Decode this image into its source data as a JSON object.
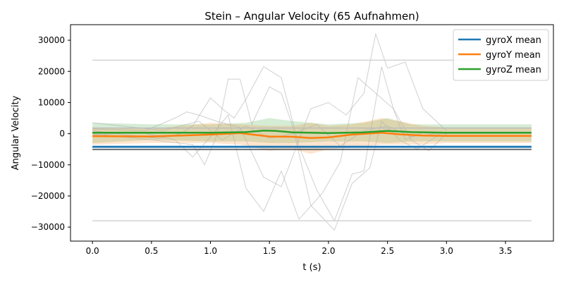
{
  "chart_data": {
    "type": "line",
    "title": "Stein – Angular Velocity (65 Aufnahmen)",
    "xlabel": "t (s)",
    "ylabel": "Angular Velocity",
    "xlim": [
      -0.186,
      3.906
    ],
    "ylim": [
      -34500,
      35000
    ],
    "xticks": [
      0.0,
      0.5,
      1.0,
      1.5,
      2.0,
      2.5,
      3.0,
      3.5
    ],
    "xtick_labels": [
      "0.0",
      "0.5",
      "1.0",
      "1.5",
      "2.0",
      "2.5",
      "3.0",
      "3.5"
    ],
    "yticks": [
      -30000,
      -20000,
      -10000,
      0,
      10000,
      20000,
      30000
    ],
    "ytick_labels": [
      "−30000",
      "−20000",
      "−10000",
      "0",
      "10000",
      "20000",
      "30000"
    ],
    "grid": false,
    "legend_position": "top-right",
    "mean_series": [
      {
        "name": "gyroX mean",
        "color": "#1f77b4",
        "x": [
          0,
          1.0,
          1.5,
          2.0,
          2.5,
          3.0,
          3.72
        ],
        "values": [
          -4200,
          -4200,
          -4200,
          -4200,
          -4200,
          -4200,
          -4200
        ]
      },
      {
        "name": "gyroY mean",
        "color": "#ff7f0e",
        "x": [
          0,
          0.5,
          1.0,
          1.25,
          1.5,
          1.7,
          1.85,
          2.0,
          2.2,
          2.45,
          2.6,
          2.8,
          3.0,
          3.72
        ],
        "values": [
          -800,
          -900,
          -300,
          200,
          -900,
          -1000,
          -1400,
          -1200,
          -300,
          300,
          -200,
          -600,
          -700,
          -700
        ]
      },
      {
        "name": "gyroZ mean",
        "color": "#2ca02c",
        "x": [
          0,
          0.5,
          1.0,
          1.3,
          1.45,
          1.55,
          1.7,
          2.0,
          2.3,
          2.5,
          2.7,
          3.0,
          3.72
        ],
        "values": [
          300,
          300,
          300,
          500,
          1000,
          900,
          400,
          200,
          400,
          900,
          500,
          300,
          300
        ]
      }
    ],
    "bands": [
      {
        "color": "#2ca02c",
        "x": [
          0,
          0.5,
          1.0,
          1.3,
          1.5,
          1.7,
          2.0,
          2.3,
          2.5,
          2.7,
          3.0,
          3.72
        ],
        "upper": [
          3500,
          3000,
          3000,
          3500,
          5000,
          4000,
          3000,
          3500,
          5000,
          3000,
          3000,
          3000
        ],
        "lower": [
          -3000,
          -2000,
          -2500,
          -2500,
          -3000,
          -3000,
          -2500,
          -2500,
          -3000,
          -2500,
          -2500,
          -2500
        ]
      },
      {
        "color": "#ff7f0e",
        "x": [
          0,
          0.5,
          1.0,
          1.25,
          1.5,
          1.7,
          1.85,
          2.0,
          2.2,
          2.45,
          2.6,
          2.8,
          3.0,
          3.72
        ],
        "upper": [
          2000,
          1500,
          3500,
          3000,
          2500,
          2500,
          3500,
          2500,
          3000,
          5000,
          4000,
          2500,
          2000,
          2000
        ],
        "lower": [
          -3500,
          -3000,
          -3000,
          -3500,
          -5500,
          -5000,
          -6500,
          -5000,
          -4500,
          -3500,
          -3500,
          -3500,
          -3000,
          -3000
        ]
      },
      {
        "color": "#1f77b4",
        "x": [
          0,
          3.72
        ],
        "upper": [
          -3700,
          -3700
        ],
        "lower": [
          -4800,
          -4800
        ]
      }
    ],
    "horizontal_lines": [
      {
        "color": "#d3d3d3",
        "x": [
          0,
          3.72
        ],
        "value": 23600
      },
      {
        "color": "#d3d3d3",
        "x": [
          0,
          3.72
        ],
        "value": -28000
      },
      {
        "color": "#4a4a4a",
        "x": [
          0,
          3.72
        ],
        "value": -5100
      },
      {
        "color": "#bdbdbd",
        "x": [
          0,
          3.72
        ],
        "value": 1800
      }
    ],
    "recordings": [
      {
        "x": [
          0,
          0.3,
          0.55,
          0.75,
          0.85,
          1.0,
          1.1,
          1.2,
          1.3,
          1.45,
          1.6,
          1.75,
          1.9,
          2.05,
          2.2,
          2.3,
          2.45,
          2.55,
          2.65,
          2.8,
          3.0
        ],
        "values": [
          1000,
          -500,
          -1500,
          0,
          2500,
          11500,
          8000,
          5000,
          11000,
          21500,
          18000,
          -4000,
          -18000,
          -28000,
          -13000,
          -12000,
          21500,
          8000,
          -2000,
          500,
          0
        ]
      },
      {
        "x": [
          0,
          0.45,
          0.7,
          0.8,
          0.9,
          1.05,
          1.25,
          1.45,
          1.6,
          1.85,
          2.0,
          2.15,
          2.3,
          2.4,
          2.5,
          2.65,
          2.8,
          3.0
        ],
        "values": [
          1500,
          1000,
          5000,
          7000,
          6000,
          4000,
          2000,
          -14000,
          -17000,
          8000,
          10000,
          6000,
          13000,
          32000,
          21000,
          23000,
          8000,
          1000
        ]
      },
      {
        "x": [
          0,
          0.5,
          0.85,
          0.95,
          1.05,
          1.15,
          1.25,
          1.35,
          1.5,
          1.6,
          1.7,
          1.85,
          2.05,
          2.2,
          2.35,
          2.45,
          2.6,
          2.75,
          2.95
        ],
        "values": [
          0,
          -2000,
          -3500,
          -10000,
          -1000,
          17500,
          17500,
          3000,
          15000,
          13000,
          2000,
          -23000,
          -31000,
          -16000,
          -11000,
          4000,
          -2000,
          -5000,
          0
        ]
      },
      {
        "x": [
          0,
          0.4,
          0.7,
          0.85,
          1.0,
          1.15,
          1.3,
          1.45,
          1.6,
          1.75,
          1.95,
          2.1,
          2.25,
          2.4,
          2.55,
          2.7,
          2.85,
          3.0
        ],
        "values": [
          -500,
          500,
          -2000,
          -7500,
          -1000,
          6000,
          -17500,
          -25000,
          -12000,
          -27500,
          -19000,
          -9000,
          18000,
          13000,
          8000,
          -2000,
          -5500,
          0
        ]
      },
      {
        "x": [
          0,
          0.6,
          0.9,
          1.1,
          1.3,
          1.5,
          1.7,
          1.9,
          2.1,
          2.3,
          2.5,
          2.7,
          3.0
        ],
        "values": [
          3500,
          1000,
          4000,
          -2000,
          2500,
          -1500,
          0,
          3000,
          -4000,
          1000,
          2500,
          -1000,
          500
        ]
      }
    ]
  }
}
